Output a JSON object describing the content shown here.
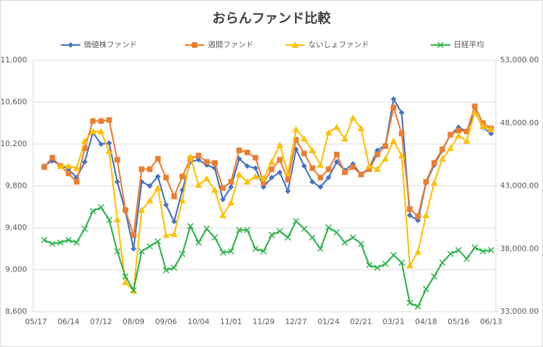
{
  "chart_data": {
    "type": "line",
    "title": "おらんファンド比較",
    "categories": [
      "05/17",
      null,
      null,
      null,
      "06/14",
      null,
      null,
      null,
      "07/12",
      null,
      null,
      null,
      "08/09",
      null,
      null,
      null,
      "09/06",
      null,
      null,
      null,
      "10/04",
      null,
      null,
      null,
      "11/01",
      null,
      null,
      null,
      "11/29",
      null,
      null,
      null,
      "12/27",
      null,
      null,
      null,
      "01/24",
      null,
      null,
      null,
      "02/21",
      null,
      null,
      null,
      "03/21",
      null,
      null,
      null,
      "04/18",
      null,
      null,
      null,
      "05/16",
      null,
      null,
      null,
      "06/13"
    ],
    "ylim": [
      8600,
      11000
    ],
    "yticks": [
      {
        "value": 8600,
        "label": "8,600"
      },
      {
        "value": 9000,
        "label": "9,000"
      },
      {
        "value": 9400,
        "label": "9,400"
      },
      {
        "value": 9800,
        "label": "9,800"
      },
      {
        "value": 10200,
        "label": "10,200"
      },
      {
        "value": 10600,
        "label": "10,600"
      },
      {
        "value": 11000,
        "label": "11,000"
      }
    ],
    "y2lim": [
      33000,
      53000
    ],
    "y2ticks": [
      {
        "value": 33000,
        "label": "33,000.00"
      },
      {
        "value": 38000,
        "label": "38,000.00"
      },
      {
        "value": 43000,
        "label": "43,000.00"
      },
      {
        "value": 48000,
        "label": "48,000.00"
      },
      {
        "value": 53000,
        "label": "53,000.00"
      }
    ],
    "grid": true,
    "legend": "top",
    "series": [
      {
        "name": "価値株ファンド",
        "color": "#4472c4",
        "marker": "diamond",
        "values": [
          null,
          9990,
          10040,
          10000,
          9960,
          9880,
          10030,
          10310,
          10200,
          10210,
          9840,
          9560,
          9200,
          9840,
          9800,
          9890,
          9620,
          9460,
          9760,
          10030,
          10050,
          10000,
          9970,
          9670,
          9790,
          10060,
          9990,
          9970,
          9790,
          9880,
          9930,
          9750,
          10150,
          9990,
          9840,
          9790,
          9880,
          10030,
          9950,
          10010,
          9910,
          9970,
          10140,
          10190,
          10630,
          10500,
          9520,
          9470,
          9830,
          10000,
          10140,
          10290,
          10360,
          10320,
          10510,
          10360,
          10300
        ]
      },
      {
        "name": "週間ファンド",
        "color": "#ed7d31",
        "marker": "square",
        "values": [
          null,
          9980,
          10070,
          9990,
          9920,
          9840,
          10160,
          10420,
          10420,
          10430,
          10050,
          9570,
          9330,
          9960,
          9960,
          10060,
          9880,
          9700,
          9890,
          10060,
          10090,
          10030,
          10020,
          9780,
          9840,
          10140,
          10120,
          10070,
          9830,
          9960,
          10050,
          9860,
          10240,
          10110,
          9970,
          9880,
          9960,
          10100,
          9930,
          9980,
          9910,
          9960,
          10100,
          10180,
          10550,
          10300,
          9580,
          9510,
          9840,
          10020,
          10150,
          10290,
          10330,
          10320,
          10560,
          10400,
          10350
        ]
      },
      {
        "name": "ないしょファンド",
        "color": "#ffc000",
        "marker": "triangle",
        "values": [
          null,
          null,
          null,
          9990,
          9990,
          9970,
          10230,
          10320,
          10320,
          10130,
          9480,
          8880,
          8800,
          9570,
          9660,
          9780,
          9330,
          9340,
          9660,
          10080,
          9810,
          9870,
          9760,
          9520,
          9640,
          9910,
          9840,
          9890,
          9870,
          10030,
          10190,
          9920,
          10340,
          10250,
          10140,
          10000,
          10310,
          10360,
          10250,
          10450,
          10350,
          9990,
          9960,
          10060,
          10230,
          10090,
          9040,
          9170,
          9520,
          9830,
          10060,
          10160,
          10280,
          10230,
          10500,
          10370,
          10340
        ]
      },
      {
        "name": "日経平均",
        "color": "#2db34a",
        "marker": "x",
        "axis": "y2",
        "values": [
          null,
          38700,
          38400,
          38500,
          38700,
          38500,
          39600,
          41000,
          41300,
          40300,
          37800,
          35800,
          34700,
          37800,
          38200,
          38600,
          36300,
          36500,
          37600,
          39800,
          38500,
          39600,
          38900,
          37700,
          37800,
          39500,
          39500,
          38000,
          37800,
          39100,
          39400,
          38900,
          40200,
          39600,
          38900,
          38000,
          39700,
          39300,
          38500,
          38900,
          38400,
          36700,
          36500,
          36800,
          37500,
          36900,
          33700,
          33400,
          34800,
          35800,
          36900,
          37600,
          37900,
          37200,
          38100,
          37800,
          37900
        ]
      }
    ]
  }
}
